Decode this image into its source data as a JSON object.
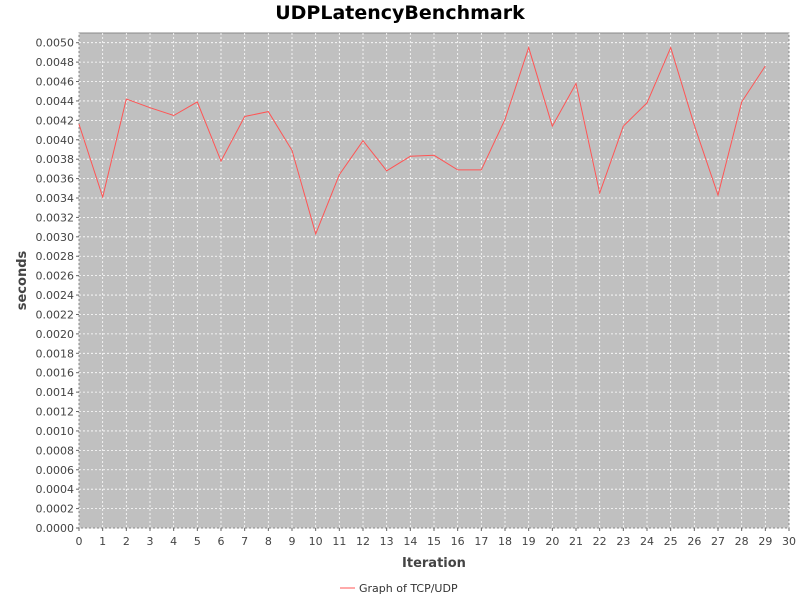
{
  "chart_data": {
    "type": "line",
    "title": "UDPLatencyBenchmark",
    "xlabel": "Iteration",
    "ylabel": "seconds",
    "xlim": [
      0,
      30
    ],
    "ylim": [
      0,
      0.0051
    ],
    "x_ticks": [
      0,
      1,
      2,
      3,
      4,
      5,
      6,
      7,
      8,
      9,
      10,
      11,
      12,
      13,
      14,
      15,
      16,
      17,
      18,
      19,
      20,
      21,
      22,
      23,
      24,
      25,
      26,
      27,
      28,
      29,
      30
    ],
    "y_ticks": [
      "0.0000",
      "0.0002",
      "0.0004",
      "0.0006",
      "0.0008",
      "0.0010",
      "0.0012",
      "0.0014",
      "0.0016",
      "0.0018",
      "0.0020",
      "0.0022",
      "0.0024",
      "0.0026",
      "0.0028",
      "0.0030",
      "0.0032",
      "0.0034",
      "0.0036",
      "0.0038",
      "0.0040",
      "0.0042",
      "0.0044",
      "0.0046",
      "0.0048",
      "0.0050"
    ],
    "grid": true,
    "legend_position": "bottom",
    "plot_background": "#c0c0c0",
    "series": [
      {
        "name": "Graph of TCP/UDP",
        "color": "#ff5555",
        "x": [
          0,
          1,
          2,
          3,
          4,
          5,
          6,
          7,
          8,
          9,
          10,
          11,
          12,
          13,
          14,
          15,
          16,
          17,
          18,
          19,
          20,
          21,
          22,
          23,
          24,
          25,
          26,
          27,
          28,
          29
        ],
        "values": [
          0.00416,
          0.00341,
          0.00442,
          0.00433,
          0.00425,
          0.00439,
          0.00378,
          0.00424,
          0.00429,
          0.00389,
          0.00303,
          0.00364,
          0.00399,
          0.00368,
          0.00383,
          0.00384,
          0.00369,
          0.00369,
          0.00421,
          0.00495,
          0.00414,
          0.00458,
          0.00345,
          0.00414,
          0.00438,
          0.00495,
          0.00415,
          0.00343,
          0.00439,
          0.00476
        ]
      }
    ]
  }
}
